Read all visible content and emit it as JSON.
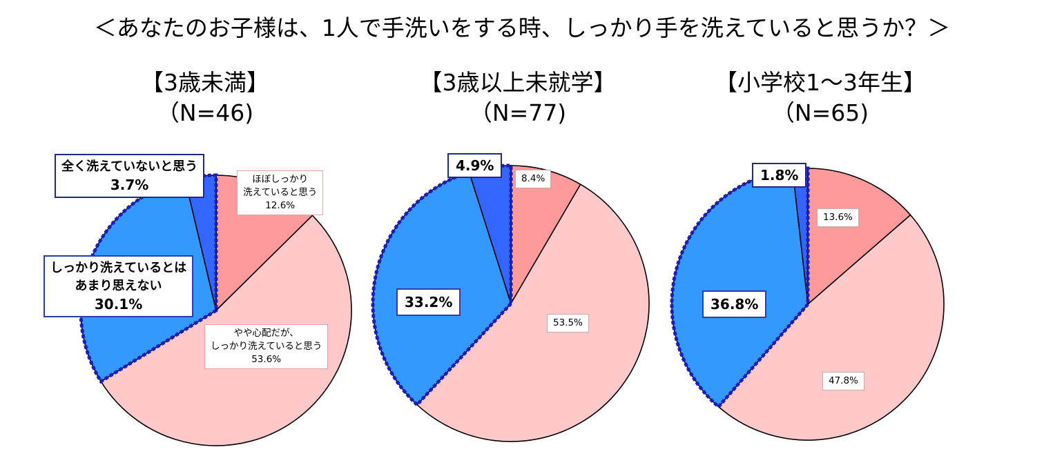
{
  "title": "＜あなたのお子様は、1人で手洗いをする時、しっかり手を洗えていると思うか？＞",
  "colors": {
    "very": "#ff9a9a",
    "somewhat": "#ffc9c9",
    "not_really": "#3399ff",
    "not_at_all": "#3366ff",
    "highlight_border": "#1c1cbf"
  },
  "chart_data": [
    {
      "type": "pie",
      "title": "【3歳未満】",
      "subtitle": "（N=46)",
      "categories": [
        "ほぼしっかり洗えていると思う",
        "やや心配だが、しっかり洗えていると思う",
        "しっかり洗えているとはあまり思えない",
        "全く洗えていないと思う"
      ],
      "values": [
        12.6,
        53.6,
        30.1,
        3.7
      ],
      "labels": [
        [
          "ほぼしっかり",
          "洗えていると思う",
          "12.6%"
        ],
        [
          "やや心配だが、",
          "しっかり洗えていると思う",
          "53.6%"
        ],
        [
          "しっかり洗えているとは",
          "あまり思えない",
          "30.1%"
        ],
        [
          "全く洗えていないと思う",
          "3.7%"
        ]
      ]
    },
    {
      "type": "pie",
      "title": "【3歳以上未就学】",
      "subtitle": "（N=77)",
      "values": [
        8.4,
        53.5,
        33.2,
        4.9
      ],
      "labels": [
        [
          "8.4%"
        ],
        [
          "53.5%"
        ],
        [
          "33.2%"
        ],
        [
          "4.9%"
        ]
      ]
    },
    {
      "type": "pie",
      "title": "【小学校1～3年生】",
      "subtitle": "（N=65)",
      "values": [
        13.6,
        47.8,
        36.8,
        1.8
      ],
      "labels": [
        [
          "13.6%"
        ],
        [
          "47.8%"
        ],
        [
          "36.8%"
        ],
        [
          "1.8%"
        ]
      ]
    }
  ]
}
